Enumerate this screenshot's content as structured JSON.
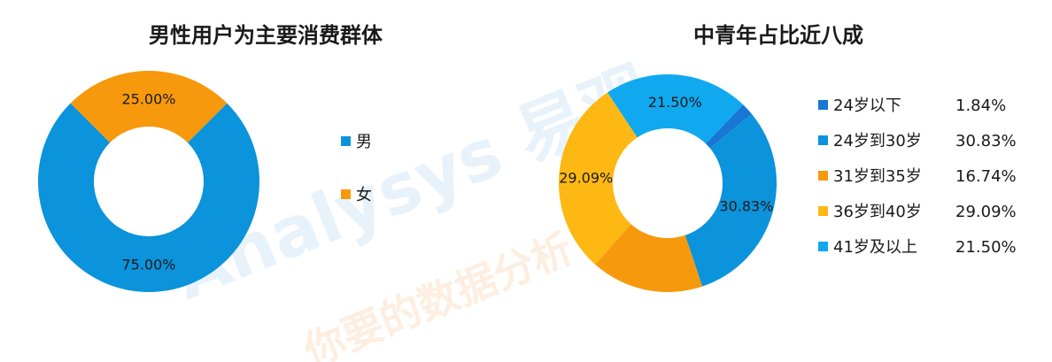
{
  "watermark": {
    "brand_text": "Analysys 易观",
    "tagline_text": "你要的数据分析"
  },
  "chart_data": [
    {
      "type": "pie",
      "donut": true,
      "title": "男性用户为主要消费群体",
      "categories": [
        "男",
        "女"
      ],
      "values": [
        75.0,
        25.0
      ],
      "labels": [
        "75.00%",
        "25.00%"
      ],
      "colors": [
        "#0b93db",
        "#f7990c"
      ],
      "legend": "right"
    },
    {
      "type": "pie",
      "donut": true,
      "title": "中青年占比近八成",
      "categories": [
        "24岁以下",
        "24岁到30岁",
        "31岁到35岁",
        "36岁到40岁",
        "41岁及以上"
      ],
      "values": [
        1.84,
        30.83,
        16.74,
        29.09,
        21.5
      ],
      "labels": [
        "1.84%",
        "30.83%",
        "16.74%",
        "29.09%",
        "21.50%"
      ],
      "slice_labels": [
        "",
        "30.83%",
        "",
        "29.09%",
        "21.50%"
      ],
      "colors": [
        "#1976d2",
        "#0b93db",
        "#f7990c",
        "#fdb813",
        "#10a9f0"
      ],
      "legend": "right"
    }
  ]
}
